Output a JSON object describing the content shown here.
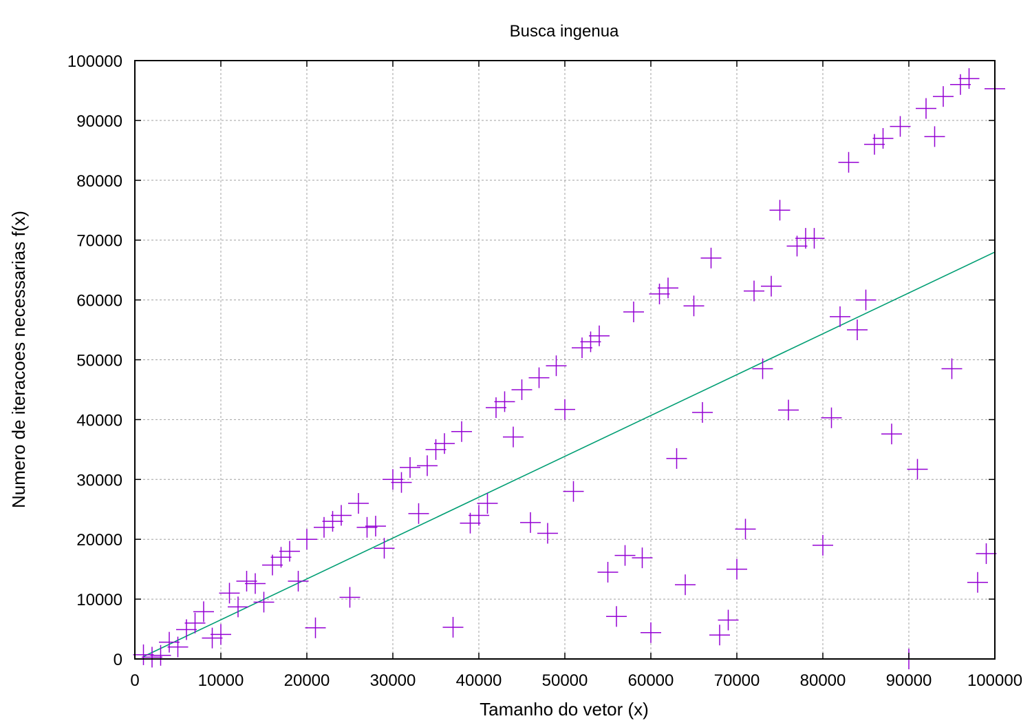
{
  "chart_data": {
    "type": "scatter",
    "title": "Busca ingenua",
    "xlabel": "Tamanho do vetor (x)",
    "ylabel": "Numero de iteracoes necessarias f(x)",
    "xlim": [
      0,
      100000
    ],
    "ylim": [
      0,
      100000
    ],
    "x_ticks": [
      0,
      10000,
      20000,
      30000,
      40000,
      50000,
      60000,
      70000,
      80000,
      90000,
      100000
    ],
    "y_ticks": [
      0,
      10000,
      20000,
      30000,
      40000,
      50000,
      60000,
      70000,
      80000,
      90000,
      100000
    ],
    "grid": true,
    "colors": {
      "points": "#9400d3",
      "fit_line": "#009e73",
      "grid": "#a0a0a0"
    },
    "series": [
      {
        "type": "scatter",
        "marker": "plus",
        "points": [
          [
            1000,
            700
          ],
          [
            2000,
            300
          ],
          [
            3000,
            600
          ],
          [
            4000,
            2800
          ],
          [
            5000,
            2000
          ],
          [
            6000,
            4900
          ],
          [
            7000,
            6000
          ],
          [
            8000,
            7900
          ],
          [
            9000,
            3500
          ],
          [
            10000,
            4100
          ],
          [
            11000,
            11000
          ],
          [
            12000,
            8700
          ],
          [
            13000,
            13000
          ],
          [
            14000,
            12600
          ],
          [
            15000,
            9500
          ],
          [
            16000,
            15700
          ],
          [
            17000,
            17000
          ],
          [
            18000,
            18000
          ],
          [
            19000,
            13000
          ],
          [
            20000,
            20000
          ],
          [
            21000,
            5200
          ],
          [
            22000,
            22000
          ],
          [
            23000,
            23000
          ],
          [
            24000,
            24000
          ],
          [
            25000,
            10300
          ],
          [
            26000,
            26000
          ],
          [
            27000,
            22000
          ],
          [
            28000,
            22200
          ],
          [
            29000,
            18500
          ],
          [
            30000,
            30000
          ],
          [
            31000,
            29500
          ],
          [
            32000,
            32000
          ],
          [
            33000,
            24300
          ],
          [
            34000,
            32300
          ],
          [
            35000,
            35000
          ],
          [
            36000,
            36000
          ],
          [
            37000,
            5300
          ],
          [
            38000,
            38000
          ],
          [
            39000,
            22700
          ],
          [
            40000,
            24000
          ],
          [
            41000,
            26000
          ],
          [
            42000,
            42000
          ],
          [
            43000,
            43000
          ],
          [
            44000,
            37100
          ],
          [
            45000,
            45000
          ],
          [
            46000,
            22800
          ],
          [
            47000,
            47000
          ],
          [
            48000,
            21000
          ],
          [
            49000,
            49000
          ],
          [
            50000,
            41700
          ],
          [
            51000,
            28000
          ],
          [
            52000,
            52000
          ],
          [
            53000,
            53000
          ],
          [
            54000,
            54000
          ],
          [
            55000,
            14500
          ],
          [
            56000,
            7100
          ],
          [
            57000,
            17300
          ],
          [
            58000,
            58000
          ],
          [
            59000,
            16900
          ],
          [
            60000,
            4400
          ],
          [
            61000,
            61000
          ],
          [
            62000,
            62000
          ],
          [
            63000,
            33500
          ],
          [
            64000,
            12400
          ],
          [
            65000,
            59000
          ],
          [
            66000,
            41200
          ],
          [
            67000,
            67000
          ],
          [
            68000,
            4000
          ],
          [
            69000,
            6500
          ],
          [
            70000,
            15000
          ],
          [
            71000,
            21700
          ],
          [
            72000,
            61500
          ],
          [
            73000,
            48500
          ],
          [
            74000,
            62300
          ],
          [
            75000,
            75000
          ],
          [
            76000,
            41600
          ],
          [
            77000,
            69000
          ],
          [
            78000,
            70300
          ],
          [
            79000,
            70300
          ],
          [
            80000,
            19000
          ],
          [
            81000,
            40300
          ],
          [
            82000,
            57200
          ],
          [
            83000,
            83000
          ],
          [
            84000,
            55000
          ],
          [
            85000,
            60000
          ],
          [
            86000,
            86000
          ],
          [
            87000,
            87000
          ],
          [
            88000,
            37600
          ],
          [
            89000,
            89000
          ],
          [
            90000,
            0
          ],
          [
            91000,
            31700
          ],
          [
            92000,
            92000
          ],
          [
            93000,
            87300
          ],
          [
            94000,
            94000
          ],
          [
            95000,
            48500
          ],
          [
            96000,
            96000
          ],
          [
            97000,
            97000
          ],
          [
            98000,
            12800
          ],
          [
            99000,
            17600
          ],
          [
            100000,
            95300
          ]
        ]
      },
      {
        "type": "line",
        "points": [
          [
            1000,
            400
          ],
          [
            100000,
            68000
          ]
        ]
      }
    ]
  }
}
